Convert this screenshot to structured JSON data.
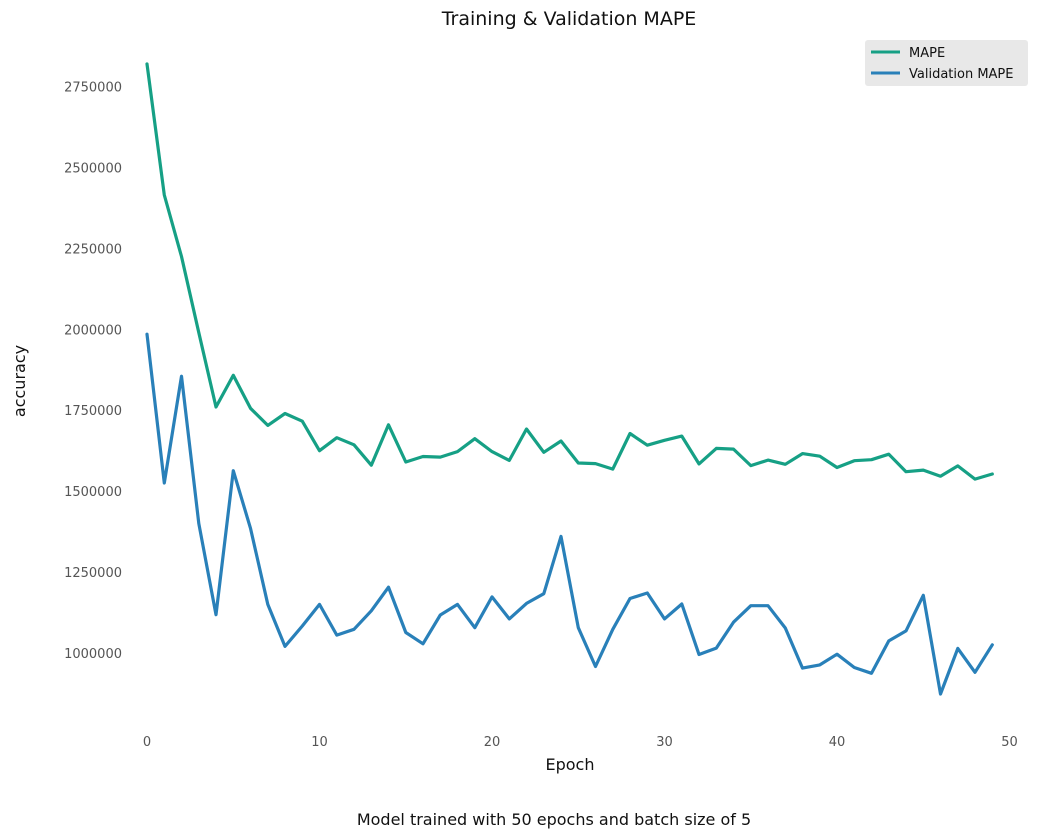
{
  "caption": "Model trained with 50 epochs and batch size of 5",
  "colors": {
    "mape": "#16a085",
    "val_mape": "#2980b9",
    "legend_bg": "#e8e8e8"
  },
  "chart_data": {
    "type": "line",
    "title": "Training & Validation MAPE",
    "xlabel": "Epoch",
    "ylabel": "accuracy",
    "xlim": [
      -5,
      50
    ],
    "ylim": [
      720000,
      2900000
    ],
    "xticks": [
      0,
      10,
      20,
      30,
      40,
      50
    ],
    "yticks": [
      1000000,
      1250000,
      1500000,
      1750000,
      2000000,
      2250000,
      2500000,
      2750000
    ],
    "xtick_labels": [
      "0",
      "10",
      "20",
      "30",
      "40",
      "50"
    ],
    "ytick_labels": [
      "1000000",
      "1250000",
      "1500000",
      "1750000",
      "2000000",
      "2250000",
      "2500000",
      "2750000"
    ],
    "grid": false,
    "legend_position": "top-right",
    "x": [
      0,
      1,
      2,
      3,
      4,
      5,
      6,
      7,
      8,
      9,
      10,
      11,
      12,
      13,
      14,
      15,
      16,
      17,
      18,
      19,
      20,
      21,
      22,
      23,
      24,
      25,
      26,
      27,
      28,
      29,
      30,
      31,
      32,
      33,
      34,
      35,
      36,
      37,
      38,
      39,
      40,
      41,
      42,
      43,
      44,
      45,
      46,
      47,
      48,
      49
    ],
    "series": [
      {
        "name": "MAPE",
        "values": [
          2820000,
          2415000,
          2225000,
          1990000,
          1760000,
          1858000,
          1756000,
          1703000,
          1740000,
          1716000,
          1625000,
          1665000,
          1643000,
          1580000,
          1705000,
          1590000,
          1607000,
          1605000,
          1622000,
          1662000,
          1622000,
          1595000,
          1692000,
          1620000,
          1655000,
          1587000,
          1585000,
          1568000,
          1678000,
          1642000,
          1657000,
          1670000,
          1584000,
          1632000,
          1630000,
          1579000,
          1596000,
          1583000,
          1616000,
          1608000,
          1573000,
          1594000,
          1597000,
          1614000,
          1560000,
          1565000,
          1546000,
          1578000,
          1537000,
          1553000
        ]
      },
      {
        "name": "Validation MAPE",
        "values": [
          1985000,
          1525000,
          1855000,
          1400000,
          1118000,
          1563000,
          1385000,
          1150000,
          1020000,
          1083000,
          1150000,
          1055000,
          1073000,
          1130000,
          1203000,
          1063000,
          1028000,
          1117000,
          1150000,
          1078000,
          1173000,
          1105000,
          1153000,
          1183000,
          1360000,
          1078000,
          958000,
          1073000,
          1168000,
          1185000,
          1105000,
          1151000,
          995000,
          1015000,
          1095000,
          1146000,
          1146000,
          1077000,
          953000,
          963000,
          996000,
          955000,
          937000,
          1037000,
          1068000,
          1178000,
          873000,
          1014000,
          940000,
          1025000
        ]
      }
    ]
  }
}
